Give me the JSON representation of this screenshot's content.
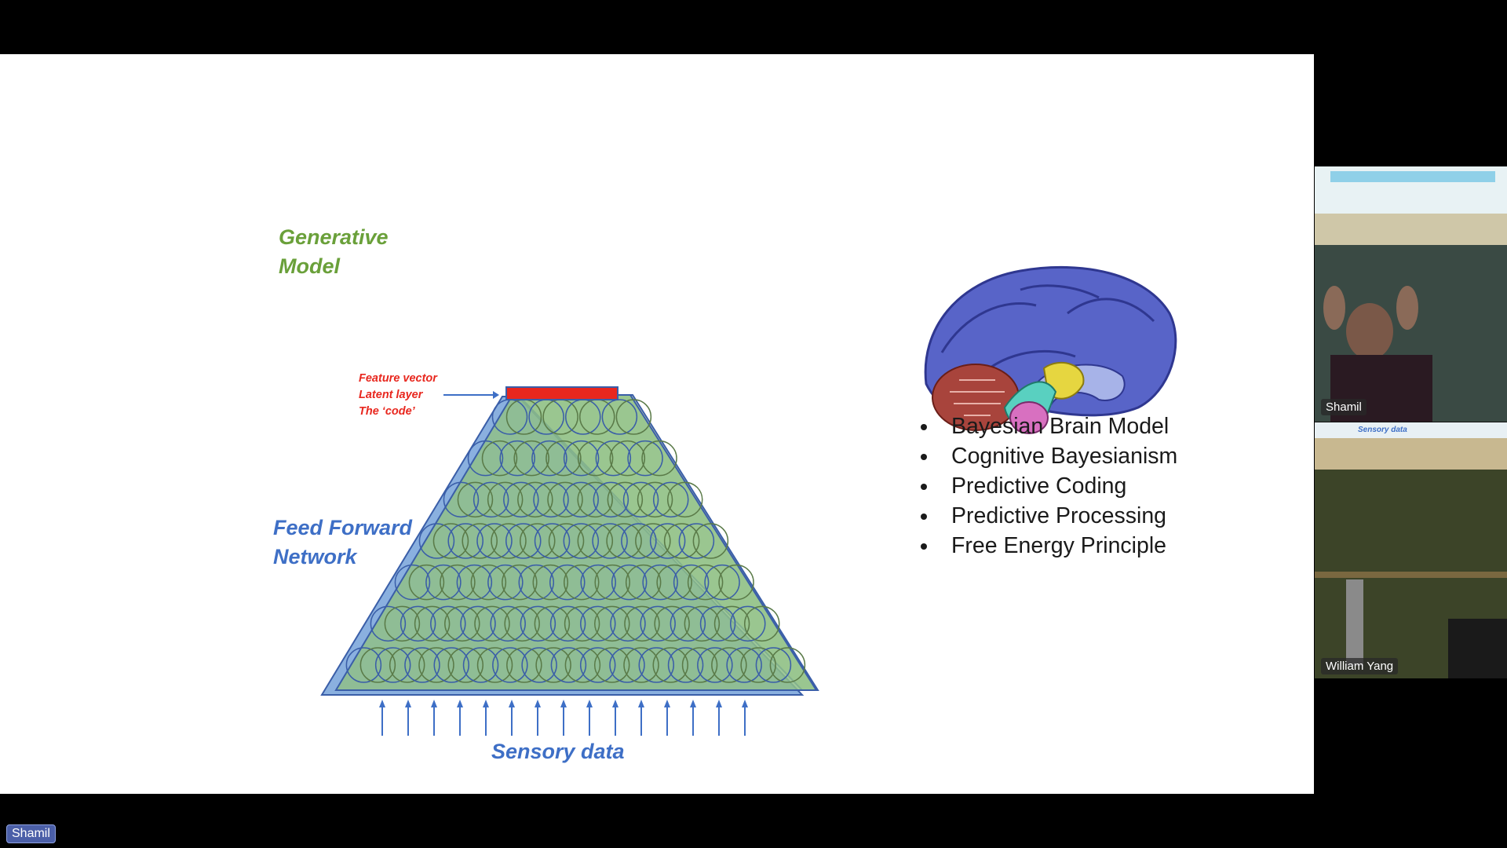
{
  "slide": {
    "generative_model_title": [
      "Generative",
      "Model"
    ],
    "feature_labels": [
      "Feature vector",
      "Latent layer",
      "The ‘code’"
    ],
    "feed_forward_title": [
      "Feed Forward",
      "Network"
    ],
    "sensory_label": "Sensory data",
    "bullets": [
      "Bayesian Brain Model",
      "Cognitive Bayesianism",
      "Predictive Coding",
      "Predictive Processing",
      "Free Energy Principle"
    ],
    "colors": {
      "generative": "#6aa03a",
      "feed_forward": "#3e6fc6",
      "feature": "#e8271e",
      "latent_bar": "#e8271e"
    }
  },
  "video_panel": {
    "participants": [
      {
        "name": "Shamil"
      },
      {
        "name": "William Yang"
      }
    ],
    "tile2_banner": "Sensory data"
  },
  "self_view": {
    "name": "Shamil"
  }
}
